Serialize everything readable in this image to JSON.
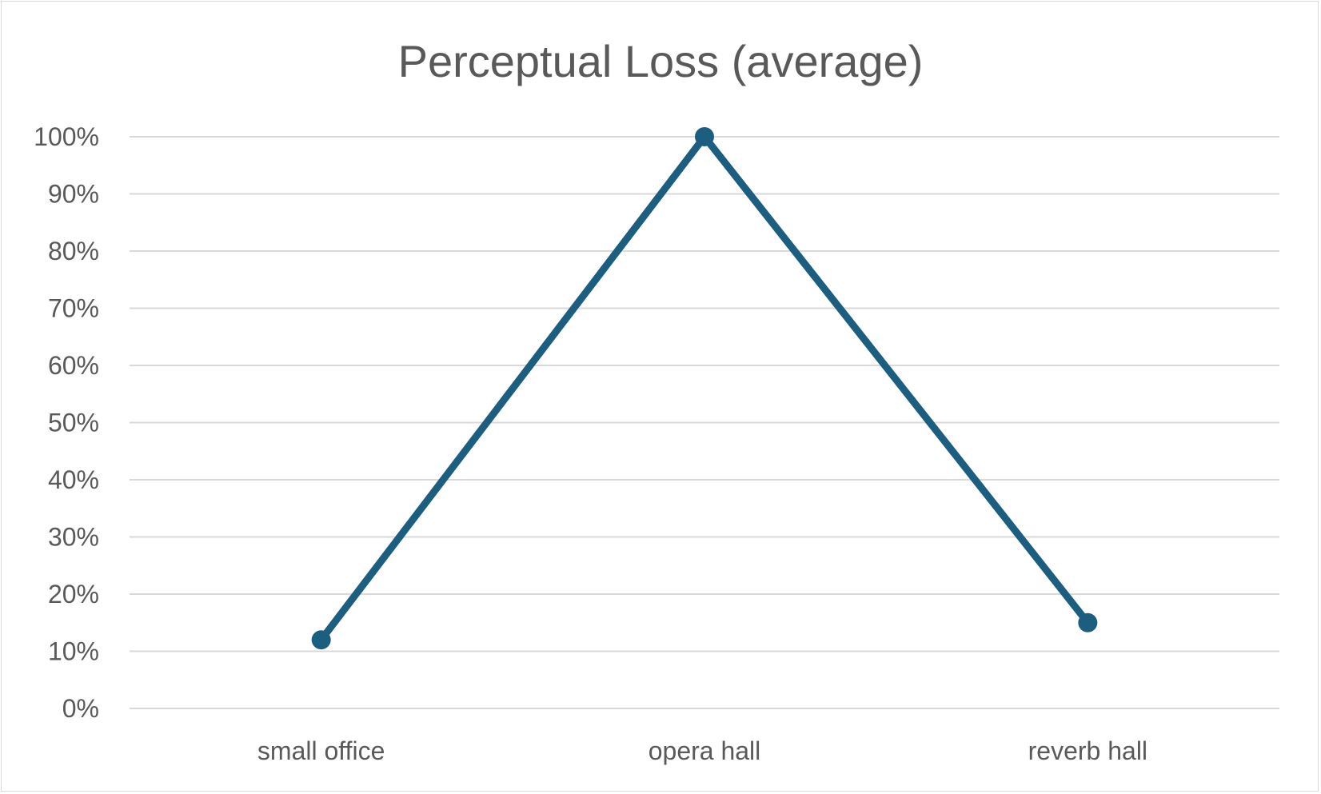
{
  "chart_data": {
    "type": "line",
    "title": "Perceptual Loss (average)",
    "xlabel": "",
    "ylabel": "",
    "categories": [
      "small office",
      "opera hall",
      "reverb hall"
    ],
    "series": [
      {
        "values": [
          12,
          100,
          15
        ],
        "color": "#1b5e80"
      }
    ],
    "ylim": [
      0,
      100
    ],
    "ytick_step": 10,
    "ytick_format": "percent",
    "grid": true,
    "legend": "none",
    "gridline_color": "#d9d9d9",
    "text_color": "#595959"
  }
}
